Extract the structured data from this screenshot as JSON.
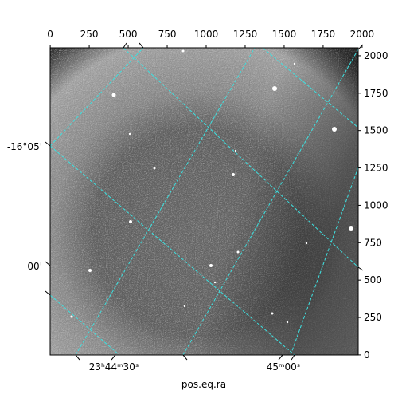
{
  "chart_data": {
    "type": "image",
    "xlabel": "pos.eq.ra",
    "xlim": [
      -0.5,
      1975
    ],
    "xticks": [
      0,
      250,
      500,
      750,
      1000,
      1250,
      1500,
      1750,
      2000
    ],
    "ylim": [
      -0.5,
      2053
    ],
    "yticks": [
      0,
      250,
      500,
      750,
      1000,
      1250,
      1500,
      1750,
      2000
    ],
    "ra_ticks": [
      "23ʰ44ᵐ30ˢ",
      "45ᵐ00ˢ"
    ],
    "dec_ticks": [
      "-16°05'",
      "00'"
    ],
    "grid_color": "#3ee0e0"
  }
}
